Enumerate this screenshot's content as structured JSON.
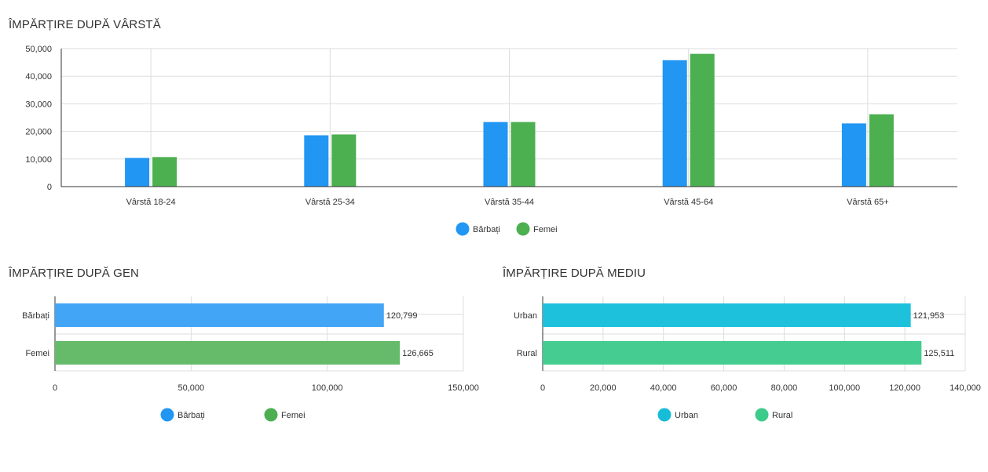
{
  "chart_data": [
    {
      "type": "bar",
      "title": "ÎMPĂRȚIRE DUPĂ VÂRSTĂ",
      "categories": [
        "Vârstă 18-24",
        "Vârstă 25-34",
        "Vârstă 35-44",
        "Vârstă 45-64",
        "Vârstă 65+"
      ],
      "series": [
        {
          "name": "Bărbați",
          "values": [
            10400,
            18600,
            23400,
            45800,
            22900
          ]
        },
        {
          "name": "Femei",
          "values": [
            10700,
            18900,
            23400,
            48100,
            26200
          ]
        }
      ],
      "ylim": [
        0,
        50000
      ],
      "yticks": [
        "0",
        "10,000",
        "20,000",
        "30,000",
        "40,000",
        "50,000"
      ],
      "colors": [
        "#2196f3",
        "#4caf50"
      ],
      "grid": true,
      "legend": "bottom-center"
    },
    {
      "type": "bar",
      "orientation": "horizontal",
      "title": "ÎMPĂRȚIRE DUPĂ GEN",
      "categories": [
        "Bărbați",
        "Femei"
      ],
      "values": [
        120799,
        126665
      ],
      "value_labels": [
        "120,799",
        "126,665"
      ],
      "xlim": [
        0,
        150000
      ],
      "xticks": [
        "0",
        "50,000",
        "100,000",
        "150,000"
      ],
      "colors": [
        "#42a5f5",
        "#66bb6a"
      ],
      "legend_colors": [
        "#2196f3",
        "#4caf50"
      ],
      "grid": true,
      "legend": "bottom-center"
    },
    {
      "type": "bar",
      "orientation": "horizontal",
      "title": "ÎMPĂRȚIRE DUPĂ MEDIU",
      "categories": [
        "Urban",
        "Rural"
      ],
      "values": [
        121953,
        125511
      ],
      "value_labels": [
        "121,953",
        "125,511"
      ],
      "xlim": [
        0,
        140000
      ],
      "xticks": [
        "0",
        "20,000",
        "40,000",
        "60,000",
        "80,000",
        "100,000",
        "120,000",
        "140,000"
      ],
      "colors": [
        "#1ec1db",
        "#45cc90"
      ],
      "legend_colors": [
        "#17bcd6",
        "#3ccb8a"
      ],
      "grid": true,
      "legend": "bottom-center"
    }
  ]
}
